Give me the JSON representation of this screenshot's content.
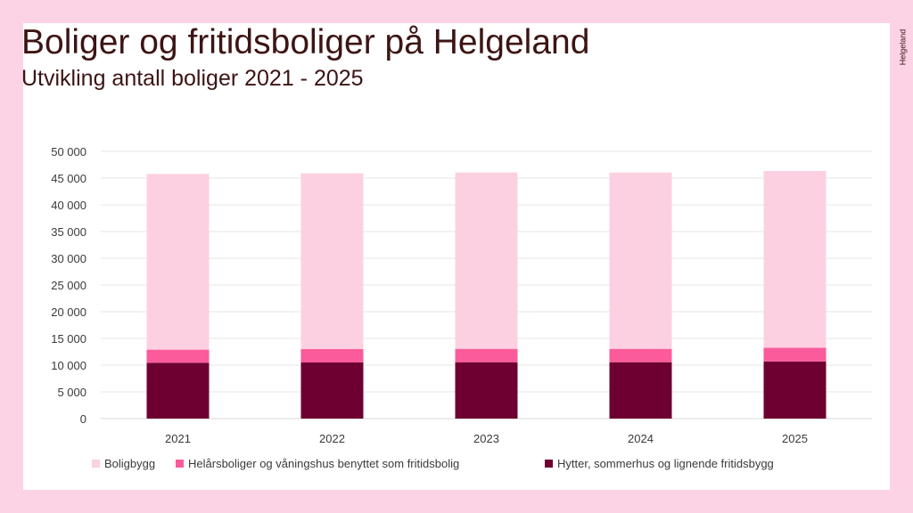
{
  "title": "Boliger og fritidsboliger på Helgeland",
  "subtitle": "Utvikling antall boliger 2021 - 2025",
  "logo_text": "Helgeland",
  "colors": {
    "background": "#fbd3e4",
    "boligbygg": "#fdd0e1",
    "helarsboliger": "#fb5b9a",
    "hytter": "#6d0030"
  },
  "chart_data": {
    "type": "bar",
    "stacked": true,
    "categories": [
      "2021",
      "2022",
      "2023",
      "2024",
      "2025"
    ],
    "series": [
      {
        "name": "Hytter, sommerhus og lignende fritidsbygg",
        "values": [
          10450,
          10500,
          10550,
          10550,
          10700
        ]
      },
      {
        "name": "Helårsboliger og våningshus benyttet som fritidsbolig",
        "values": [
          2450,
          2500,
          2500,
          2500,
          2550
        ]
      },
      {
        "name": "Boligbygg",
        "values": [
          32900,
          32900,
          33000,
          33000,
          33100
        ]
      }
    ],
    "legend_order": [
      2,
      1,
      0
    ],
    "y_ticks": [
      "0",
      "5 000",
      "10 000",
      "15 000",
      "20 000",
      "25 000",
      "30 000",
      "35 000",
      "40 000",
      "45 000",
      "50 000"
    ],
    "ylim": [
      0,
      50000
    ],
    "grid": true,
    "legend_position": "bottom"
  }
}
